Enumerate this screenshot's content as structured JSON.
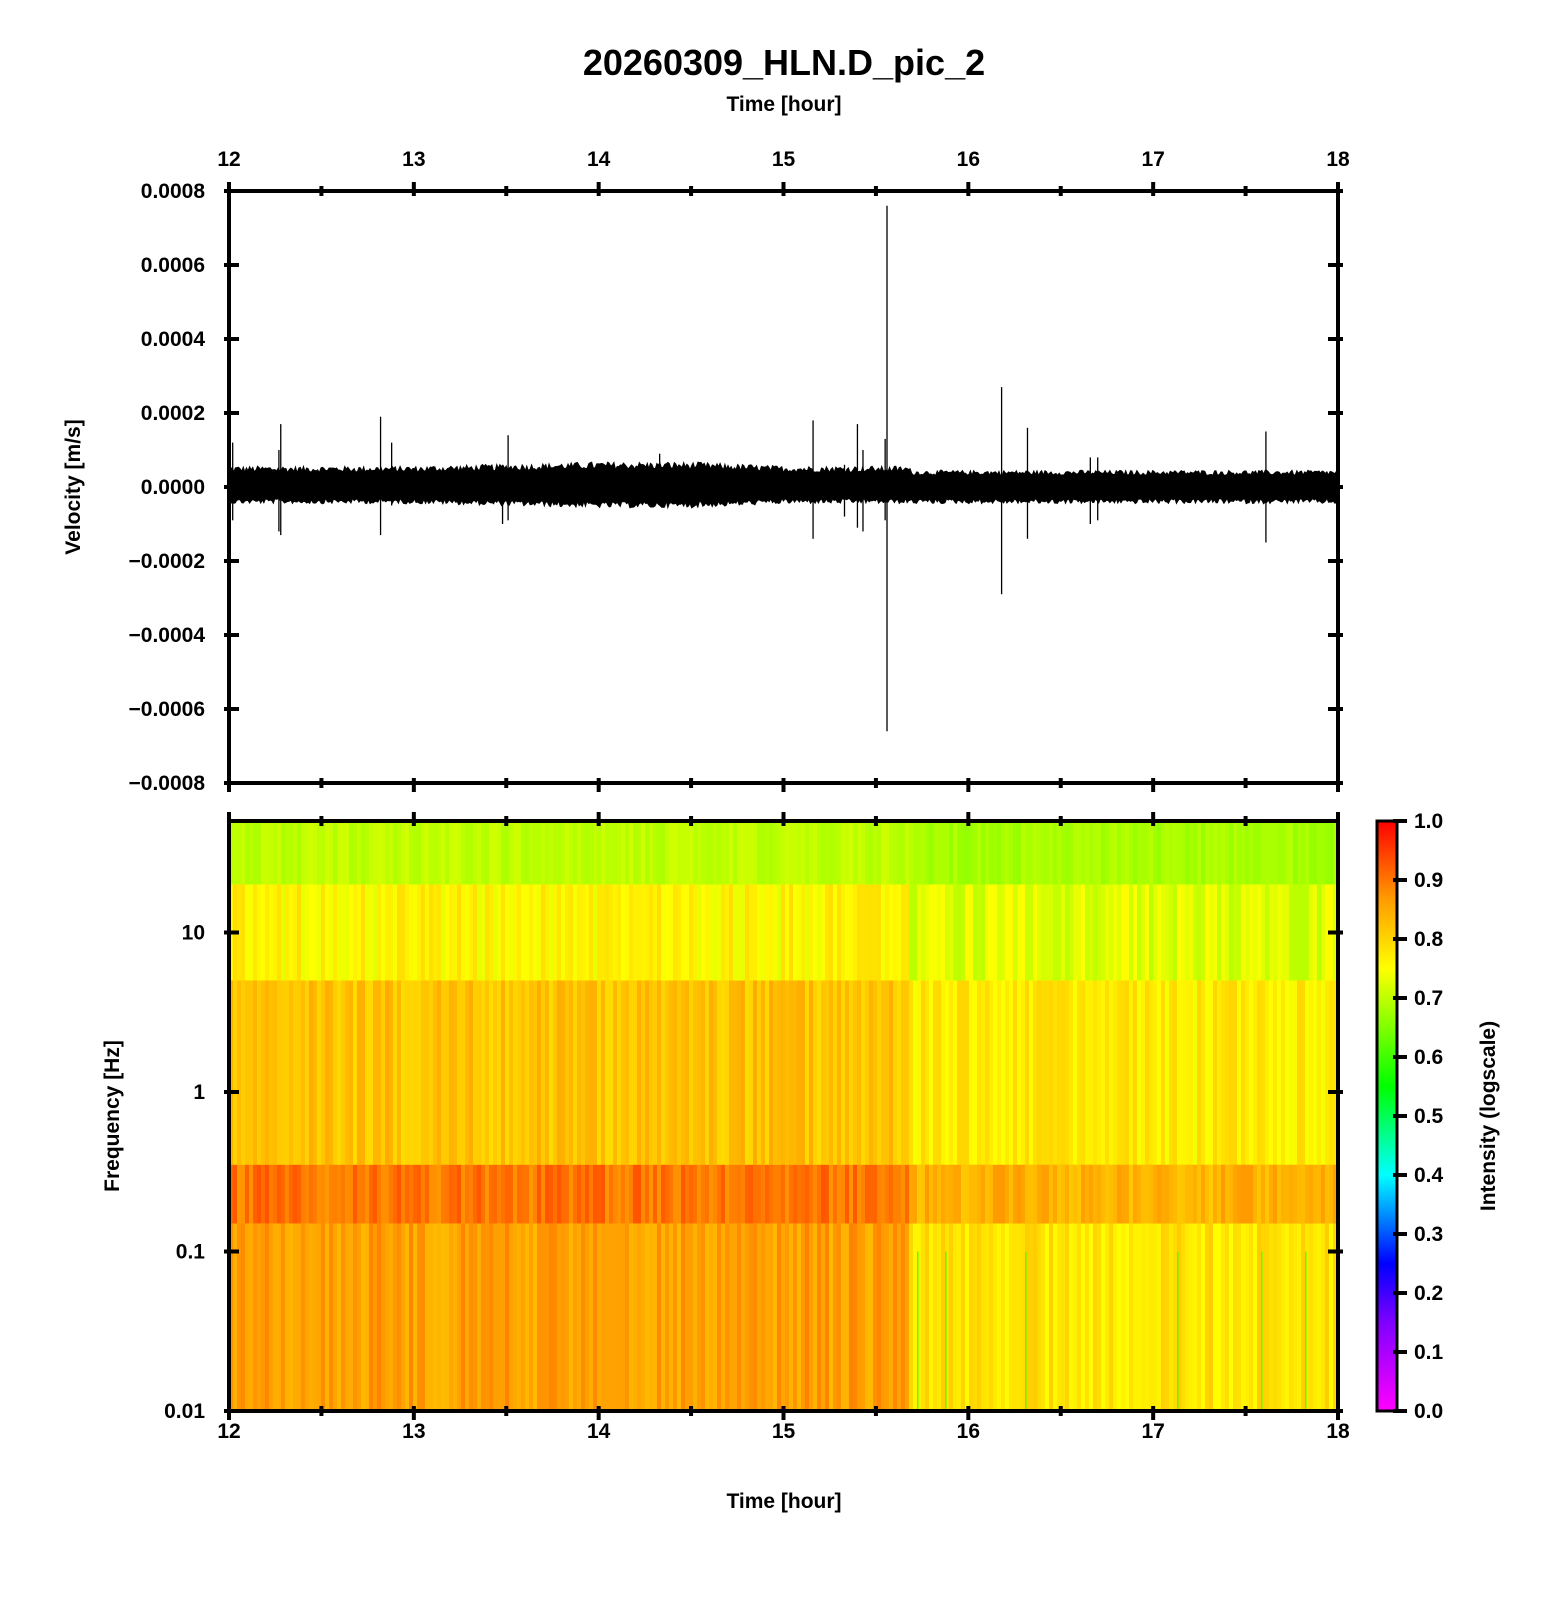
{
  "figure": {
    "title": "20260309_HLN.D_pic_2",
    "top_xlabel": "Time [hour]",
    "bottom_xlabel": "Time [hour]"
  },
  "chart_data": [
    {
      "type": "line",
      "name": "velocity-waveform",
      "ylabel": "Velocity [m/s]",
      "xlabel": "Time [hour]",
      "xlim": [
        12,
        18
      ],
      "ylim": [
        -0.0008,
        0.0008
      ],
      "x_ticks": [
        "12",
        "13",
        "14",
        "15",
        "16",
        "17",
        "18"
      ],
      "y_ticks": [
        "0.0008",
        "0.0006",
        "0.0004",
        "0.0002",
        "0.0000",
        "−0.0002",
        "−0.0004",
        "−0.0006",
        "−0.0008"
      ],
      "grid": false,
      "color": "#000000",
      "noise_envelope": {
        "times": [
          12.0,
          13.0,
          14.0,
          14.5,
          15.0,
          15.5,
          15.67,
          15.7,
          16.5,
          17.5,
          18.0
        ],
        "upper": [
          5e-05,
          5e-05,
          6e-05,
          6e-05,
          5e-05,
          5e-05,
          5e-05,
          4e-05,
          4e-05,
          4e-05,
          4e-05
        ],
        "lower": [
          -4e-05,
          -4e-05,
          -5e-05,
          -5e-05,
          -4e-05,
          -4e-05,
          -4e-05,
          -4e-05,
          -4e-05,
          -4e-05,
          -4e-05
        ]
      },
      "spikes": [
        {
          "t": 12.02,
          "max": 0.00012,
          "min": -9e-05
        },
        {
          "t": 12.27,
          "max": 0.0001,
          "min": -0.00012
        },
        {
          "t": 12.28,
          "max": 0.00017,
          "min": -0.00013
        },
        {
          "t": 12.82,
          "max": 0.00019,
          "min": -0.00013
        },
        {
          "t": 12.88,
          "max": 0.00012,
          "min": -5e-05
        },
        {
          "t": 13.48,
          "max": 6e-05,
          "min": -0.0001
        },
        {
          "t": 13.51,
          "max": 0.00014,
          "min": -9e-05
        },
        {
          "t": 14.33,
          "max": 9e-05,
          "min": -4e-05
        },
        {
          "t": 15.16,
          "max": 0.00018,
          "min": -0.00014
        },
        {
          "t": 15.33,
          "max": 6e-05,
          "min": -8e-05
        },
        {
          "t": 15.4,
          "max": 0.00017,
          "min": -0.00011
        },
        {
          "t": 15.43,
          "max": 0.0001,
          "min": -0.00012
        },
        {
          "t": 15.55,
          "max": 0.00013,
          "min": -9e-05
        },
        {
          "t": 15.56,
          "max": 0.00076,
          "min": -0.00066
        },
        {
          "t": 16.18,
          "max": 0.00027,
          "min": -0.00029
        },
        {
          "t": 16.32,
          "max": 0.00016,
          "min": -0.00014
        },
        {
          "t": 16.66,
          "max": 8e-05,
          "min": -0.0001
        },
        {
          "t": 16.7,
          "max": 8e-05,
          "min": -9e-05
        },
        {
          "t": 17.61,
          "max": 0.00015,
          "min": -0.00015
        }
      ]
    },
    {
      "type": "heatmap",
      "name": "spectrogram",
      "ylabel": "Frequency [Hz]",
      "xlabel": "Time [hour]",
      "xlim": [
        12,
        18
      ],
      "ylim": [
        0.01,
        50
      ],
      "y_scale": "log",
      "x_ticks": [
        "12",
        "13",
        "14",
        "15",
        "16",
        "17",
        "18"
      ],
      "y_ticks": [
        "10",
        "1",
        "0.1",
        "0.01"
      ],
      "colorbar": {
        "label": "Intensity (logscale)",
        "range": [
          0.0,
          1.0
        ],
        "ticks": [
          "1.0",
          "0.9",
          "0.8",
          "0.7",
          "0.6",
          "0.5",
          "0.4",
          "0.3",
          "0.2",
          "0.1",
          "0.0"
        ],
        "stops": [
          {
            "value": 0.0,
            "color": "#ff00ff"
          },
          {
            "value": 0.15,
            "color": "#7f00ff"
          },
          {
            "value": 0.25,
            "color": "#0000ff"
          },
          {
            "value": 0.4,
            "color": "#00ffff"
          },
          {
            "value": 0.55,
            "color": "#00ff00"
          },
          {
            "value": 0.75,
            "color": "#ffff00"
          },
          {
            "value": 0.87,
            "color": "#ff9900"
          },
          {
            "value": 1.0,
            "color": "#ff0000"
          }
        ]
      },
      "regimes": [
        {
          "t_start": 12.0,
          "t_end": 15.67,
          "low_freq_intensity": 0.86,
          "band_0p2hz_intensity": 0.9,
          "mid_freq_intensity": 0.82,
          "high_freq_intensity": 0.7
        },
        {
          "t_start": 15.67,
          "t_end": 18.0,
          "low_freq_intensity": 0.78,
          "band_0p2hz_intensity": 0.84,
          "mid_freq_intensity": 0.77,
          "high_freq_intensity": 0.68
        }
      ]
    }
  ]
}
